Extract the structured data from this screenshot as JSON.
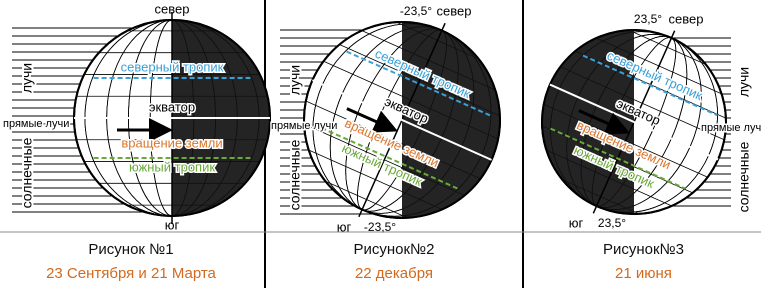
{
  "panels": [
    {
      "north": "север",
      "south": "юг",
      "tropic_north": "северный тропик",
      "equator": "экватор",
      "rotation": "вращение земли",
      "tropic_south": "южный тропик",
      "rays_top": "лучи",
      "rays_bottom": "солнечные",
      "direct_rays": "прямые лучи",
      "caption": "Рисунок №1",
      "date": "23 Сентября и 21 Марта"
    },
    {
      "north_angle": "-23,5°",
      "north": "север",
      "south": "юг",
      "south_angle": "-23,5°",
      "tropic_north": "северный тропик",
      "equator": "экватор",
      "rotation": "вращение земли",
      "tropic_south": "южный тропик",
      "rays_top": "лучи",
      "rays_bottom": "солнечные",
      "direct_rays": "прямые лучи",
      "caption": "Рисунок№2",
      "date": "22 декабря"
    },
    {
      "north_angle": "23,5°",
      "north": "север",
      "south": "юг",
      "south_angle": "23,5°",
      "tropic_north": "северный тропик",
      "equator": "экватор",
      "rotation": "вращение земли",
      "tropic_south": "южный тропик",
      "rays_top": "лучи",
      "rays_bottom": "солнечные",
      "direct_rays": "прямые лучи",
      "caption": "Рисунок№3",
      "date": "21 июня"
    }
  ]
}
